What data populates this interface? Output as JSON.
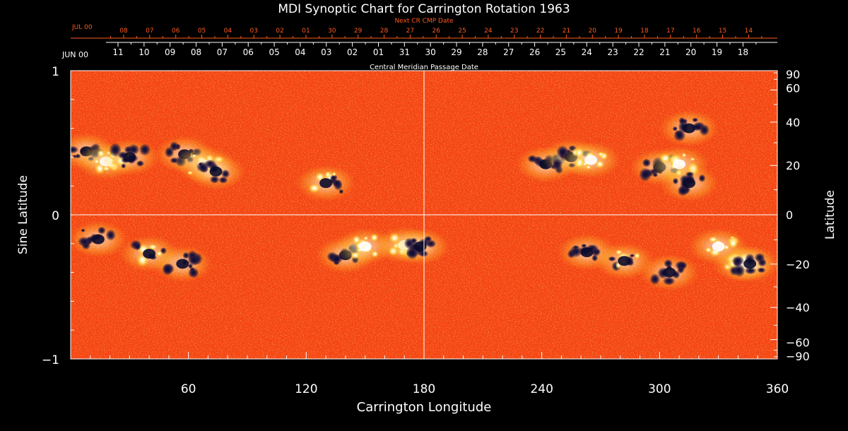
{
  "chart_data": {
    "type": "heatmap",
    "title": "MDI Synoptic Chart for Carrington Rotation 1963",
    "xlabel": "Carrington Longitude",
    "ylabel_left": "Sine Latitude",
    "ylabel_right": "Latitude",
    "xlim": [
      0,
      360
    ],
    "ylim": [
      -1,
      1
    ],
    "x_ticks": [
      60,
      120,
      180,
      240,
      300,
      360
    ],
    "y_ticks_left": [
      {
        "value": 1,
        "label": "1"
      },
      {
        "value": 0,
        "label": "0"
      },
      {
        "value": -1,
        "label": "−1"
      }
    ],
    "y_ticks_right": [
      90,
      60,
      40,
      20,
      0,
      -20,
      -40,
      -60,
      -90
    ],
    "y_ticks_right_labels": [
      "90",
      "60",
      "40",
      "20",
      "0",
      "−20",
      "−40",
      "−60",
      "−90"
    ],
    "top_axis_outer": {
      "label": "Next CR CMP Date",
      "start_label": "JUL 00",
      "labels": [
        "08",
        "07",
        "06",
        "05",
        "04",
        "03",
        "02",
        "01",
        "30",
        "29",
        "28",
        "27",
        "26",
        "25",
        "24",
        "23",
        "22",
        "21",
        "20",
        "19",
        "18",
        "17",
        "16",
        "15",
        "14"
      ],
      "color": "#ff5a1e"
    },
    "top_axis_inner": {
      "label": "Central Meridian Passage Date",
      "start_label": "JUN 00",
      "labels": [
        "11",
        "10",
        "09",
        "08",
        "07",
        "06",
        "05",
        "04",
        "03",
        "02",
        "01",
        "31",
        "30",
        "29",
        "28",
        "27",
        "26",
        "25",
        "24",
        "23",
        "22",
        "21",
        "20",
        "19",
        "18"
      ]
    },
    "reference_lines": {
      "longitude": 180,
      "sine_latitude": 0
    },
    "regions": [
      {
        "lon": 8,
        "sinlat": 0.44,
        "polarity": "negative"
      },
      {
        "lon": 18,
        "sinlat": 0.37,
        "polarity": "positive"
      },
      {
        "lon": 30,
        "sinlat": 0.4,
        "polarity": "negative"
      },
      {
        "lon": 58,
        "sinlat": 0.42,
        "polarity": "negative"
      },
      {
        "lon": 68,
        "sinlat": 0.35,
        "polarity": "positive"
      },
      {
        "lon": 74,
        "sinlat": 0.3,
        "polarity": "negative"
      },
      {
        "lon": 130,
        "sinlat": 0.22,
        "polarity": "mixed"
      },
      {
        "lon": 14,
        "sinlat": -0.17,
        "polarity": "negative"
      },
      {
        "lon": 40,
        "sinlat": -0.27,
        "polarity": "mixed"
      },
      {
        "lon": 57,
        "sinlat": -0.34,
        "polarity": "negative"
      },
      {
        "lon": 140,
        "sinlat": -0.28,
        "polarity": "negative"
      },
      {
        "lon": 150,
        "sinlat": -0.22,
        "polarity": "positive"
      },
      {
        "lon": 170,
        "sinlat": -0.21,
        "polarity": "positive"
      },
      {
        "lon": 178,
        "sinlat": -0.22,
        "polarity": "negative"
      },
      {
        "lon": 242,
        "sinlat": 0.35,
        "polarity": "negative"
      },
      {
        "lon": 255,
        "sinlat": 0.4,
        "polarity": "negative"
      },
      {
        "lon": 265,
        "sinlat": 0.38,
        "polarity": "positive"
      },
      {
        "lon": 300,
        "sinlat": 0.33,
        "polarity": "negative"
      },
      {
        "lon": 310,
        "sinlat": 0.35,
        "polarity": "positive"
      },
      {
        "lon": 315,
        "sinlat": 0.22,
        "polarity": "negative"
      },
      {
        "lon": 315,
        "sinlat": 0.6,
        "polarity": "negative"
      },
      {
        "lon": 263,
        "sinlat": -0.26,
        "polarity": "negative"
      },
      {
        "lon": 282,
        "sinlat": -0.32,
        "polarity": "mixed"
      },
      {
        "lon": 305,
        "sinlat": -0.4,
        "polarity": "negative"
      },
      {
        "lon": 330,
        "sinlat": -0.22,
        "polarity": "positive"
      },
      {
        "lon": 342,
        "sinlat": -0.34,
        "polarity": "positive"
      },
      {
        "lon": 346,
        "sinlat": -0.34,
        "polarity": "negative"
      }
    ],
    "colors": {
      "background": "#000000",
      "field_base": "#ff4a14",
      "field_mid": "#f06a10",
      "positive": "#fff6c0",
      "positive_halo": "#ffd84a",
      "negative": "#14143e",
      "axes": "#ffffff",
      "outer_axis": "#ff5a1e"
    }
  }
}
